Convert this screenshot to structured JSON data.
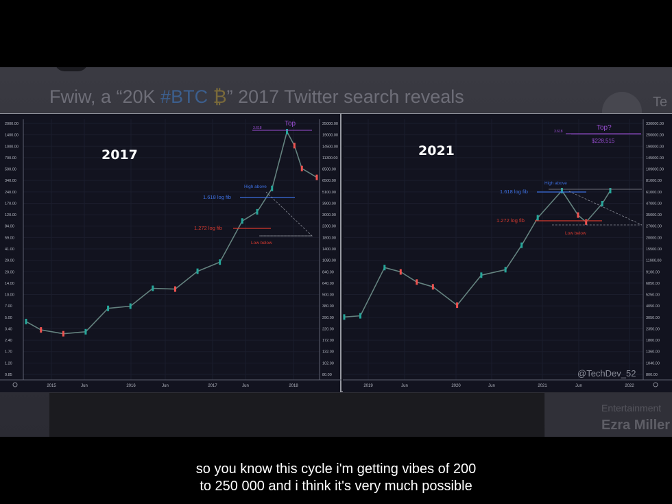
{
  "tweet": {
    "text_before": "Fwiw, a “20K ",
    "hashtag": "#BTC",
    "text_after": "” 2017 Twitter search reveals",
    "corner_text": "Te",
    "side_category": "Entertainment",
    "side_name": "Ezra Miller"
  },
  "caption": {
    "line1": "so you know this cycle i'm getting vibes of 200",
    "line2": "to 250 000 and i think it's very much possible"
  },
  "colors": {
    "up": "#26a69a",
    "down": "#ef5350",
    "fib_blue": "#3d6fe0",
    "fib_red": "#d83a2f",
    "top": "#9c4fd6"
  },
  "chart_data": [
    {
      "type": "line",
      "title": "2017",
      "y_scale": "log",
      "left_axis_ticks": [
        "2000.00",
        "1400.00",
        "1000.00",
        "700.00",
        "500.00",
        "340.00",
        "240.00",
        "170.00",
        "120.00",
        "84.00",
        "59.00",
        "41.00",
        "29.00",
        "20.00",
        "14.00",
        "10.00",
        "7.00",
        "5.00",
        "3.40",
        "2.40",
        "1.70",
        "1.20",
        "0.85"
      ],
      "right_axis_ticks": [
        "25000.00",
        "19000.00",
        "14500.00",
        "11300.00",
        "8500.00",
        "6500.00",
        "5100.00",
        "3900.00",
        "3000.00",
        "2300.00",
        "1800.00",
        "1400.00",
        "1080.00",
        "840.00",
        "640.00",
        "500.00",
        "380.00",
        "290.00",
        "220.00",
        "172.00",
        "132.00",
        "102.00",
        "80.00"
      ],
      "x_ticks": [
        "2015",
        "Jun",
        "2016",
        "Jun",
        "2017",
        "Jun",
        "2018"
      ],
      "x": [
        "2015-01",
        "2015-03",
        "2015-06",
        "2015-09",
        "2015-12",
        "2016-03",
        "2016-06",
        "2016-09",
        "2016-12",
        "2017-03",
        "2017-06",
        "2017-08",
        "2017-10",
        "2017-12",
        "2018-01",
        "2018-02",
        "2018-04"
      ],
      "series": [
        {
          "values": [
            300,
            250,
            230,
            240,
            400,
            420,
            620,
            610,
            900,
            1100,
            2700,
            3300,
            5500,
            19000,
            14000,
            8500,
            7000
          ]
        }
      ],
      "annotations": {
        "top_label": "Top",
        "top_level": "3.618",
        "high_above": "High above",
        "fib_1618": "1.618 log fib",
        "fib_1272": "1.272 log fib",
        "low_below": "Low below"
      }
    },
    {
      "type": "line",
      "title": "2021",
      "y_scale": "log",
      "right_axis_ticks": [
        "330000.00",
        "250000.00",
        "190000.00",
        "145000.00",
        "109000.00",
        "81000.00",
        "61000.00",
        "47000.00",
        "35000.00",
        "27000.00",
        "20000.00",
        "15500.00",
        "11900.00",
        "9100.00",
        "6850.00",
        "5250.00",
        "4050.00",
        "3050.00",
        "2350.00",
        "1800.00",
        "1360.00",
        "1040.00",
        "800.00"
      ],
      "x_ticks": [
        "2019",
        "Jun",
        "2020",
        "Jun",
        "2021",
        "Jun",
        "2022"
      ],
      "x": [
        "2019-01",
        "2019-03",
        "2019-06",
        "2019-08",
        "2019-10",
        "2019-12",
        "2020-03",
        "2020-06",
        "2020-09",
        "2020-11",
        "2021-01",
        "2021-04",
        "2021-06",
        "2021-07",
        "2021-09",
        "2021-10"
      ],
      "series": [
        {
          "values": [
            3700,
            3800,
            11000,
            10000,
            8000,
            7200,
            4800,
            9300,
            10500,
            18000,
            33000,
            60000,
            35000,
            30000,
            45000,
            60000
          ]
        }
      ],
      "annotations": {
        "top_label": "Top?",
        "top_level": "3.618",
        "top_value": "$228,515",
        "high_above": "High above",
        "fib_1618": "1.618 log fib",
        "fib_1272": "1.272 log fib",
        "low_below": "Low below",
        "watermark": "@TechDev_52"
      }
    }
  ]
}
